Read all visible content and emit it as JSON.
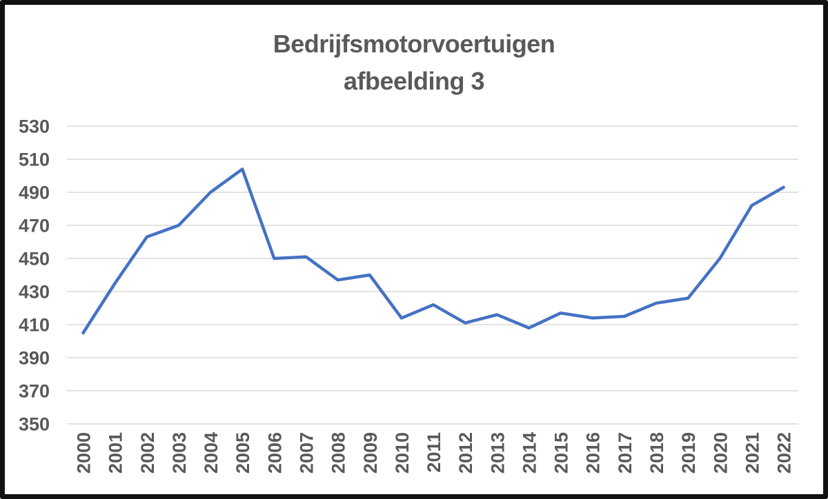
{
  "title": {
    "line1": "Bedrijfsmotorvoertuigen",
    "line2": "afbeelding 3",
    "color": "#595959"
  },
  "chart_data": {
    "type": "line",
    "title": "Bedrijfsmotorvoertuigen afbeelding 3",
    "categories": [
      "2000",
      "2001",
      "2002",
      "2003",
      "2004",
      "2005",
      "2006",
      "2007",
      "2008",
      "2009",
      "2010",
      "2011",
      "2012",
      "2013",
      "2014",
      "2015",
      "2016",
      "2017",
      "2018",
      "2019",
      "2020",
      "2021",
      "2022"
    ],
    "series": [
      {
        "name": "Bedrijfsmotorvoertuigen",
        "values": [
          405,
          435,
          463,
          470,
          490,
          504,
          450,
          451,
          437,
          440,
          414,
          422,
          411,
          416,
          408,
          417,
          414,
          415,
          423,
          426,
          450,
          482,
          493
        ]
      }
    ],
    "xlabel": "",
    "ylabel": "",
    "ylim": [
      350,
      530
    ],
    "yticks": [
      350,
      370,
      390,
      410,
      430,
      450,
      470,
      490,
      510,
      530
    ],
    "grid": true,
    "legend_position": "none",
    "line_color": "#4472C4",
    "grid_color": "#D9D9D9",
    "label_color": "#595959",
    "frame_border_color": "#121212",
    "background_color": "#FFFFFF"
  }
}
